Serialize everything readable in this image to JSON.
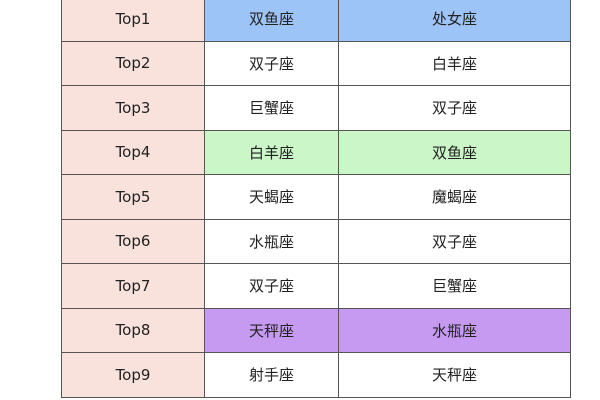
{
  "table": {
    "rows": [
      {
        "rank": "Top1",
        "a": "双鱼座",
        "b": "处女座",
        "highlight": "blue"
      },
      {
        "rank": "Top2",
        "a": "双子座",
        "b": "白羊座",
        "highlight": ""
      },
      {
        "rank": "Top3",
        "a": "巨蟹座",
        "b": "双子座",
        "highlight": ""
      },
      {
        "rank": "Top4",
        "a": "白羊座",
        "b": "双鱼座",
        "highlight": "green"
      },
      {
        "rank": "Top5",
        "a": "天蝎座",
        "b": "魔蝎座",
        "highlight": ""
      },
      {
        "rank": "Top6",
        "a": "水瓶座",
        "b": "双子座",
        "highlight": ""
      },
      {
        "rank": "Top7",
        "a": "双子座",
        "b": "巨蟹座",
        "highlight": ""
      },
      {
        "rank": "Top8",
        "a": "天秤座",
        "b": "水瓶座",
        "highlight": "purple"
      },
      {
        "rank": "Top9",
        "a": "射手座",
        "b": "天秤座",
        "highlight": ""
      }
    ]
  },
  "colors": {
    "rank_bg": "#f9e1dc",
    "blue": "#9dc4f6",
    "green": "#caf6c8",
    "purple": "#c79af1"
  }
}
